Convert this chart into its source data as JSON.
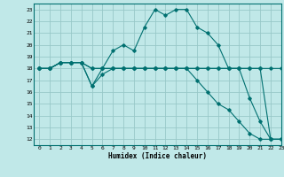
{
  "xlabel": "Humidex (Indice chaleur)",
  "bg_color": "#c0e8e8",
  "grid_color": "#98c8c8",
  "line_color": "#007070",
  "xlim": [
    -0.5,
    23
  ],
  "ylim": [
    11.5,
    23.5
  ],
  "xticks": [
    0,
    1,
    2,
    3,
    4,
    5,
    6,
    7,
    8,
    9,
    10,
    11,
    12,
    13,
    14,
    15,
    16,
    17,
    18,
    19,
    20,
    21,
    22,
    23
  ],
  "yticks": [
    12,
    13,
    14,
    15,
    16,
    17,
    18,
    19,
    20,
    21,
    22,
    23
  ],
  "series": [
    [
      18,
      18,
      18.5,
      18.5,
      18.5,
      16.5,
      18,
      19.5,
      20,
      19.5,
      21.5,
      23,
      22.5,
      23,
      23,
      21.5,
      21,
      20,
      18,
      18,
      15.5,
      13.5,
      12,
      12
    ],
    [
      18,
      18,
      18.5,
      18.5,
      18.5,
      18,
      18,
      18,
      18,
      18,
      18,
      18,
      18,
      18,
      18,
      18,
      18,
      18,
      18,
      18,
      18,
      18,
      18,
      18
    ],
    [
      18,
      18,
      18.5,
      18.5,
      18.5,
      18,
      18,
      18,
      18,
      18,
      18,
      18,
      18,
      18,
      18,
      18,
      18,
      18,
      18,
      18,
      18,
      18,
      12,
      12
    ],
    [
      18,
      18,
      18.5,
      18.5,
      18.5,
      16.5,
      17.5,
      18,
      18,
      18,
      18,
      18,
      18,
      18,
      18,
      17,
      16,
      15,
      14.5,
      13.5,
      12.5,
      12,
      12,
      12
    ]
  ]
}
